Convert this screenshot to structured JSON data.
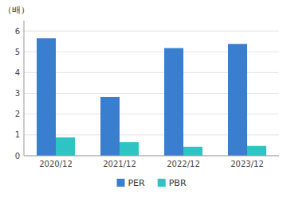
{
  "chart_data": {
    "type": "bar",
    "y_label": "（배）",
    "categories": [
      "2020/12",
      "2021/12",
      "2022/12",
      "2023/12"
    ],
    "series": [
      {
        "name": "PER",
        "color": "#3a7ecf",
        "values": [
          5.65,
          2.83,
          5.18,
          5.38
        ]
      },
      {
        "name": "PBR",
        "color": "#2ec4c4",
        "values": [
          0.88,
          0.65,
          0.43,
          0.47
        ]
      }
    ],
    "ylim": [
      0,
      6.5
    ],
    "yticks": [
      0,
      1,
      2,
      3,
      4,
      5,
      6
    ],
    "grid": true,
    "legend": "bottom"
  }
}
